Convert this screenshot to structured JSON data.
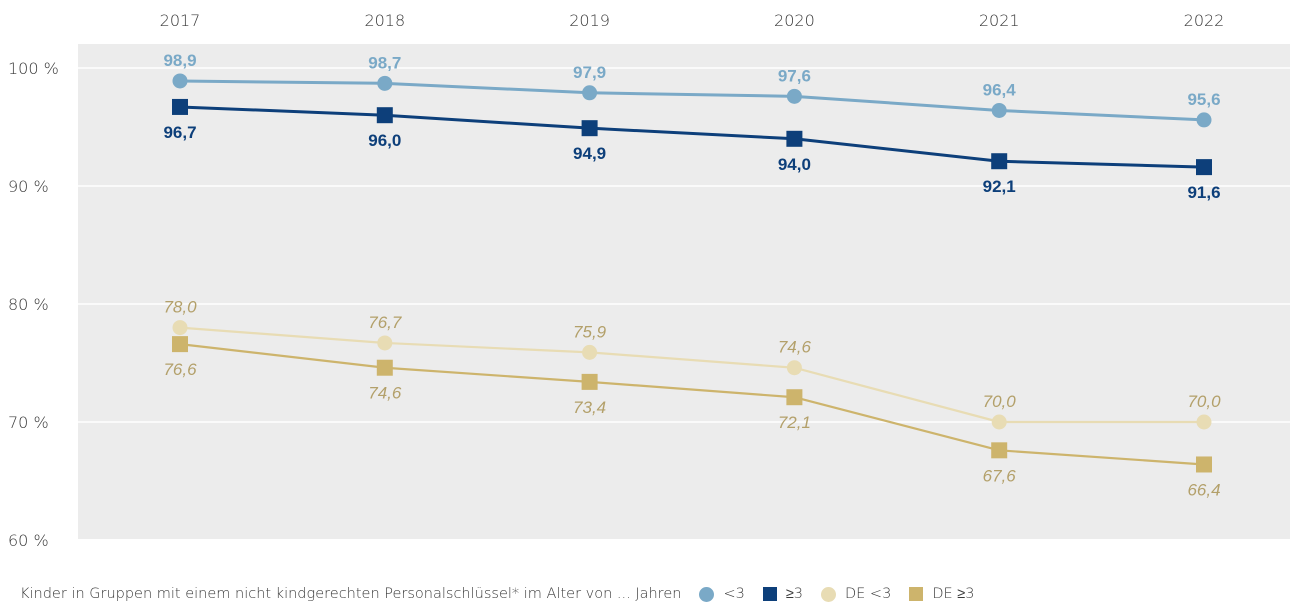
{
  "chart_data": {
    "type": "line",
    "categories": [
      "2017",
      "2018",
      "2019",
      "2020",
      "2021",
      "2022"
    ],
    "ylim": [
      60,
      100
    ],
    "yticks": [
      100,
      90,
      80,
      70,
      60
    ],
    "ytick_labels": [
      "100 %",
      "90 %",
      "80 %",
      "70 %",
      "60 %"
    ],
    "grid": "horizontal",
    "legend_position": "bottom",
    "legend_title": "Kinder in Gruppen mit einem nicht kindgerechten Personalschlüssel* im Alter von ... Jahren",
    "series": [
      {
        "name": "<3",
        "marker": "circle",
        "label_style": "bold",
        "label_position": "above",
        "color": "#7aa9c7",
        "values": [
          98.9,
          98.7,
          97.9,
          97.6,
          96.4,
          95.6
        ],
        "labels": [
          "98,9",
          "98,7",
          "97,9",
          "97,6",
          "96,4",
          "95,6"
        ]
      },
      {
        "name": "≥3",
        "marker": "square",
        "label_style": "bold",
        "label_position": "below",
        "color": "#0d3f7a",
        "values": [
          96.7,
          96.0,
          94.9,
          94.0,
          92.1,
          91.6
        ],
        "labels": [
          "96,7",
          "96,0",
          "94,9",
          "94,0",
          "92,1",
          "91,6"
        ]
      },
      {
        "name": "DE <3",
        "marker": "circle",
        "label_style": "italic",
        "label_position": "above",
        "color": "#e8dcb4",
        "label_color": "#b3a06a",
        "values": [
          78.0,
          76.7,
          75.9,
          74.6,
          70.0,
          70.0
        ],
        "labels": [
          "78,0",
          "76,7",
          "75,9",
          "74,6",
          "70,0",
          "70,0"
        ]
      },
      {
        "name": "DE ≥3",
        "marker": "square",
        "label_style": "italic",
        "label_position": "below",
        "color": "#cdb46c",
        "label_color": "#b3a06a",
        "values": [
          76.6,
          74.6,
          73.4,
          72.1,
          67.6,
          66.4
        ],
        "labels": [
          "76,6",
          "74,6",
          "73,4",
          "72,1",
          "67,6",
          "66,4"
        ]
      }
    ]
  }
}
